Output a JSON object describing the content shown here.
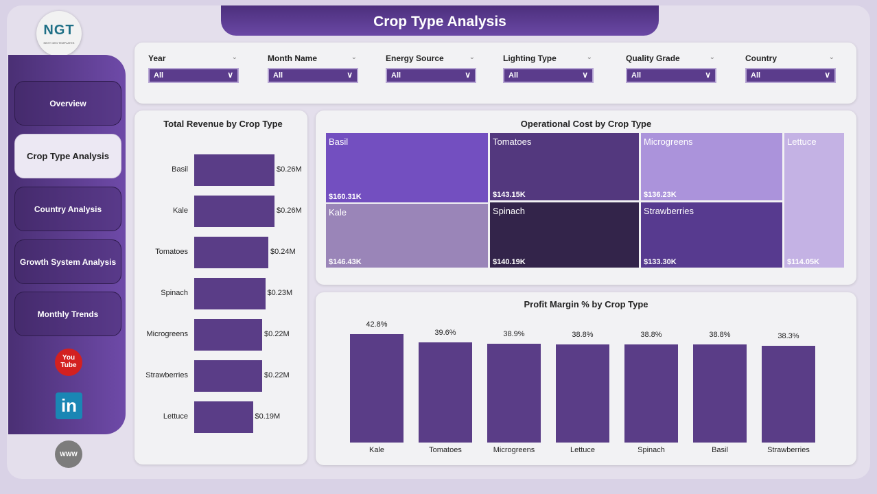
{
  "logo": {
    "text": "NGT",
    "subtitle": "NEXT GEN TEMPLATES"
  },
  "title": "Crop Type Analysis",
  "nav": [
    {
      "label": "Overview"
    },
    {
      "label": "Crop Type Analysis",
      "active": true
    },
    {
      "label": "Country Analysis"
    },
    {
      "label": "Growth System Analysis"
    },
    {
      "label": "Monthly Trends"
    }
  ],
  "social": {
    "youtube": "youtube-icon",
    "linkedin": "linkedin-icon",
    "web": "globe-icon"
  },
  "filters": [
    {
      "label": "Year",
      "value": "All"
    },
    {
      "label": "Month Name",
      "value": "All"
    },
    {
      "label": "Energy Source",
      "value": "All"
    },
    {
      "label": "Lighting Type",
      "value": "All"
    },
    {
      "label": "Quality Grade",
      "value": "All"
    },
    {
      "label": "Country",
      "value": "All"
    }
  ],
  "chart_data": [
    {
      "type": "bar",
      "orientation": "horizontal",
      "title": "Total Revenue by Crop Type",
      "categories": [
        "Basil",
        "Kale",
        "Tomatoes",
        "Spinach",
        "Microgreens",
        "Strawberries",
        "Lettuce"
      ],
      "values": [
        0.26,
        0.26,
        0.24,
        0.23,
        0.22,
        0.22,
        0.19
      ],
      "labels": [
        "$0.26M",
        "$0.26M",
        "$0.24M",
        "$0.23M",
        "$0.22M",
        "$0.22M",
        "$0.19M"
      ],
      "unit": "$M",
      "color": "#5a3d87"
    },
    {
      "type": "treemap",
      "title": "Operational Cost by Crop Type",
      "categories": [
        "Basil",
        "Kale",
        "Tomatoes",
        "Spinach",
        "Microgreens",
        "Strawberries",
        "Lettuce"
      ],
      "values": [
        160.31,
        146.43,
        143.15,
        140.19,
        136.23,
        133.3,
        114.05
      ],
      "labels": [
        "$160.31K",
        "$146.43K",
        "$143.15K",
        "$140.19K",
        "$136.23K",
        "$133.30K",
        "$114.05K"
      ],
      "unit": "$K",
      "colors": [
        "#734fc0",
        "#9a85b8",
        "#53387e",
        "#33244a",
        "#ab93db",
        "#573a8f",
        "#c4b2e4"
      ]
    },
    {
      "type": "bar",
      "title": "Profit Margin % by Crop Type",
      "categories": [
        "Kale",
        "Tomatoes",
        "Microgreens",
        "Lettuce",
        "Spinach",
        "Basil",
        "Strawberries"
      ],
      "values": [
        42.8,
        39.6,
        38.9,
        38.8,
        38.8,
        38.8,
        38.3
      ],
      "labels": [
        "42.8%",
        "39.6%",
        "38.9%",
        "38.8%",
        "38.8%",
        "38.8%",
        "38.3%"
      ],
      "unit": "%",
      "color": "#5a3d87"
    }
  ]
}
